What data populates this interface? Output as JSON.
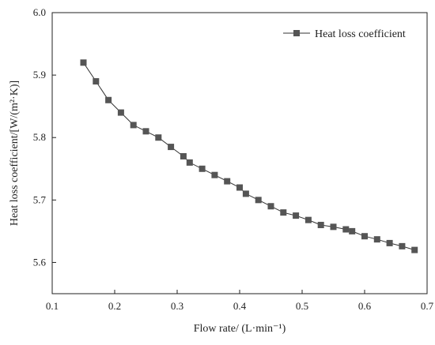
{
  "chart_data": {
    "type": "line",
    "title": "",
    "xlabel": "Flow rate/ (L·min⁻¹)",
    "ylabel": "Heat loss coefficient/[W/(m²·K)]",
    "xlim": [
      0.1,
      0.7
    ],
    "ylim": [
      5.55,
      6.0
    ],
    "x_ticks": [
      0.1,
      0.2,
      0.3,
      0.4,
      0.5,
      0.6,
      0.7
    ],
    "y_ticks": [
      5.6,
      5.7,
      5.8,
      5.9,
      6.0
    ],
    "x_tick_labels": [
      "0.1",
      "0.2",
      "0.3",
      "0.4",
      "0.5",
      "0.6",
      "0.7"
    ],
    "y_tick_labels": [
      "5.6",
      "5.7",
      "5.8",
      "5.9",
      "6.0"
    ],
    "grid": false,
    "legend_position": "top-right",
    "series": [
      {
        "name": "Heat loss coefficient",
        "color": "#555555",
        "marker": "square",
        "x": [
          0.15,
          0.17,
          0.19,
          0.21,
          0.23,
          0.25,
          0.27,
          0.29,
          0.31,
          0.32,
          0.34,
          0.36,
          0.38,
          0.4,
          0.41,
          0.43,
          0.45,
          0.47,
          0.49,
          0.51,
          0.53,
          0.55,
          0.57,
          0.58,
          0.6,
          0.62,
          0.64,
          0.66,
          0.68
        ],
        "y": [
          5.92,
          5.89,
          5.86,
          5.84,
          5.82,
          5.81,
          5.8,
          5.785,
          5.77,
          5.76,
          5.75,
          5.74,
          5.73,
          5.72,
          5.71,
          5.7,
          5.69,
          5.68,
          5.675,
          5.668,
          5.66,
          5.657,
          5.653,
          5.65,
          5.642,
          5.637,
          5.631,
          5.626,
          5.62
        ]
      }
    ]
  }
}
